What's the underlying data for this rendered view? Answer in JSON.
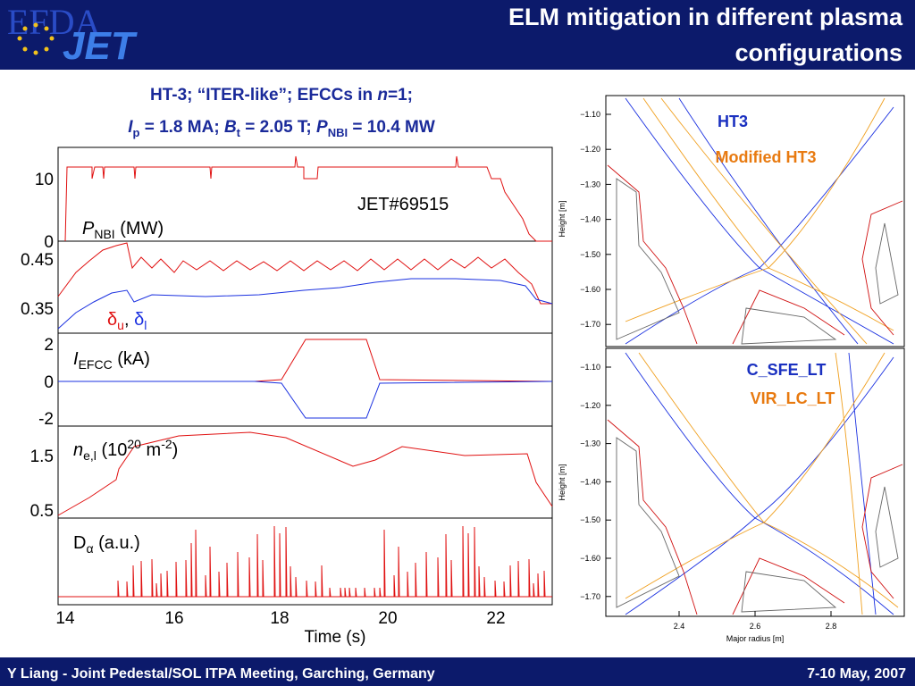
{
  "header": {
    "logo": [
      "EFDA",
      "JET"
    ],
    "title": [
      "ELM mitigation in different plasma",
      "configurations"
    ]
  },
  "left": {
    "caption": {
      "line1": [
        "HT-3; “ITER-like”; EFCCs in ",
        "n",
        "=1;"
      ],
      "line2": [
        "I",
        "p",
        " = 1.8 MA; ",
        "B",
        "t",
        " = 2.05 T; ",
        "P",
        "NBI",
        " = 10.4 MW"
      ]
    },
    "shot": "JET#69515",
    "panels": [
      {
        "label": [
          "P",
          "NBI",
          " (MW)"
        ],
        "yticks": [
          "10",
          "0"
        ]
      },
      {
        "label": [
          "δ",
          "u",
          ", ",
          "δ",
          "l"
        ],
        "yticks": [
          "0.45",
          "0.35"
        ]
      },
      {
        "label": [
          "I",
          "EFCC",
          " (kA)"
        ],
        "yticks": [
          "2",
          "0",
          "-2"
        ]
      },
      {
        "label": [
          "n",
          "e,l",
          " (10",
          "20",
          " m",
          "-2",
          ")"
        ],
        "yticks": [
          "1.5",
          "0.5"
        ]
      },
      {
        "label": [
          "D",
          "α",
          " (a.u.)"
        ],
        "yticks": []
      }
    ],
    "xticks": [
      "14",
      "16",
      "18",
      "20",
      "22"
    ],
    "xlabel": "Time (s)"
  },
  "right": {
    "panels": [
      {
        "names": [
          "HT3",
          "Modified HT3"
        ]
      },
      {
        "names": [
          "C_SFE_LT",
          "VIR_LC_LT"
        ]
      }
    ],
    "yticks": [
      "−1.10",
      "−1.20",
      "−1.30",
      "−1.40",
      "−1.50",
      "−1.60",
      "−1.70"
    ],
    "xticks": [
      "2.4",
      "2.6",
      "2.8"
    ],
    "xlabel": "Major radius [m]",
    "ylabel": "Height [m]"
  },
  "footer": {
    "left": "Y Liang - Joint Pedestal/SOL ITPA Meeting, Garching, Germany",
    "right": "7-10 May, 2007"
  }
}
